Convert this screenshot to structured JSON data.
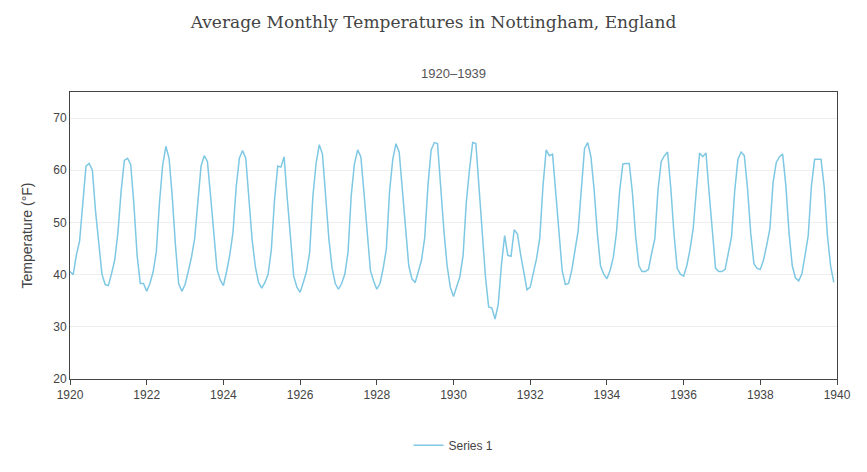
{
  "chart_data": {
    "type": "line",
    "title": "Average Monthly Temperatures in Nottingham, England",
    "subtitle": "1920–1939",
    "ylabel": "Temperature (°F)",
    "x": [
      1920,
      1920.0833333333333,
      1920.1666666666667,
      1920.25,
      1920.3333333333333,
      1920.4166666666667,
      1920.5,
      1920.5833333333333,
      1920.6666666666667,
      1920.75,
      1920.8333333333333,
      1920.9166666666667,
      1921,
      1921.0833333333333,
      1921.1666666666667,
      1921.25,
      1921.3333333333333,
      1921.4166666666667,
      1921.5,
      1921.5833333333333,
      1921.6666666666667,
      1921.75,
      1921.8333333333333,
      1921.9166666666667,
      1922,
      1922.0833333333333,
      1922.1666666666667,
      1922.25,
      1922.3333333333333,
      1922.4166666666667,
      1922.5,
      1922.5833333333333,
      1922.6666666666667,
      1922.75,
      1922.8333333333333,
      1922.9166666666667,
      1923,
      1923.0833333333333,
      1923.1666666666667,
      1923.25,
      1923.3333333333333,
      1923.4166666666667,
      1923.5,
      1923.5833333333333,
      1923.6666666666667,
      1923.75,
      1923.8333333333333,
      1923.9166666666667,
      1924,
      1924.0833333333333,
      1924.1666666666667,
      1924.25,
      1924.3333333333333,
      1924.4166666666667,
      1924.5,
      1924.5833333333333,
      1924.6666666666667,
      1924.75,
      1924.8333333333333,
      1924.9166666666667,
      1925,
      1925.0833333333333,
      1925.1666666666667,
      1925.25,
      1925.3333333333333,
      1925.4166666666667,
      1925.5,
      1925.5833333333333,
      1925.6666666666667,
      1925.75,
      1925.8333333333333,
      1925.9166666666667,
      1926,
      1926.0833333333333,
      1926.1666666666667,
      1926.25,
      1926.3333333333333,
      1926.4166666666667,
      1926.5,
      1926.5833333333333,
      1926.6666666666667,
      1926.75,
      1926.8333333333333,
      1926.9166666666667,
      1927,
      1927.0833333333333,
      1927.1666666666667,
      1927.25,
      1927.3333333333333,
      1927.4166666666667,
      1927.5,
      1927.5833333333333,
      1927.6666666666667,
      1927.75,
      1927.8333333333333,
      1927.9166666666667,
      1928,
      1928.0833333333333,
      1928.1666666666667,
      1928.25,
      1928.3333333333333,
      1928.4166666666667,
      1928.5,
      1928.5833333333333,
      1928.6666666666667,
      1928.75,
      1928.8333333333333,
      1928.9166666666667,
      1929,
      1929.0833333333333,
      1929.1666666666667,
      1929.25,
      1929.3333333333333,
      1929.4166666666667,
      1929.5,
      1929.5833333333333,
      1929.6666666666667,
      1929.75,
      1929.8333333333333,
      1929.9166666666667,
      1930,
      1930.0833333333333,
      1930.1666666666667,
      1930.25,
      1930.3333333333333,
      1930.4166666666667,
      1930.5,
      1930.5833333333333,
      1930.6666666666667,
      1930.75,
      1930.8333333333333,
      1930.9166666666667,
      1931,
      1931.0833333333333,
      1931.1666666666667,
      1931.25,
      1931.3333333333333,
      1931.4166666666667,
      1931.5,
      1931.5833333333333,
      1931.6666666666667,
      1931.75,
      1931.8333333333333,
      1931.9166666666667,
      1932,
      1932.0833333333333,
      1932.1666666666667,
      1932.25,
      1932.3333333333333,
      1932.4166666666667,
      1932.5,
      1932.5833333333333,
      1932.6666666666667,
      1932.75,
      1932.8333333333333,
      1932.9166666666667,
      1933,
      1933.0833333333333,
      1933.1666666666667,
      1933.25,
      1933.3333333333333,
      1933.4166666666667,
      1933.5,
      1933.5833333333333,
      1933.6666666666667,
      1933.75,
      1933.8333333333333,
      1933.9166666666667,
      1934,
      1934.0833333333333,
      1934.1666666666667,
      1934.25,
      1934.3333333333333,
      1934.4166666666667,
      1934.5,
      1934.5833333333333,
      1934.6666666666667,
      1934.75,
      1934.8333333333333,
      1934.9166666666667,
      1935,
      1935.0833333333333,
      1935.1666666666667,
      1935.25,
      1935.3333333333333,
      1935.4166666666667,
      1935.5,
      1935.5833333333333,
      1935.6666666666667,
      1935.75,
      1935.8333333333333,
      1935.9166666666667,
      1936,
      1936.0833333333333,
      1936.1666666666667,
      1936.25,
      1936.3333333333333,
      1936.4166666666667,
      1936.5,
      1936.5833333333333,
      1936.6666666666667,
      1936.75,
      1936.8333333333333,
      1936.9166666666667,
      1937,
      1937.0833333333333,
      1937.1666666666667,
      1937.25,
      1937.3333333333333,
      1937.4166666666667,
      1937.5,
      1937.5833333333333,
      1937.6666666666667,
      1937.75,
      1937.8333333333333,
      1937.9166666666667,
      1938,
      1938.0833333333333,
      1938.1666666666667,
      1938.25,
      1938.3333333333333,
      1938.4166666666667,
      1938.5,
      1938.5833333333333,
      1938.6666666666667,
      1938.75,
      1938.8333333333333,
      1938.9166666666667,
      1939,
      1939.0833333333333,
      1939.1666666666667,
      1939.25,
      1939.3333333333333,
      1939.4166666666667,
      1939.5,
      1939.5833333333333,
      1939.6666666666667,
      1939.75,
      1939.8333333333333,
      1939.9166666666667
    ],
    "series": [
      {
        "name": "Series 1",
        "color": "#7ec8e3",
        "values": [
          40.6,
          40.0,
          43.8,
          46.4,
          53.6,
          60.8,
          61.3,
          60.0,
          52.1,
          46.4,
          40.1,
          38.1,
          37.9,
          40.2,
          42.8,
          48.1,
          56.0,
          61.9,
          62.3,
          61.1,
          53.4,
          43.7,
          38.3,
          38.3,
          36.8,
          38.3,
          40.5,
          44.3,
          53.8,
          61.0,
          64.6,
          62.3,
          54.9,
          45.6,
          38.3,
          36.8,
          38.1,
          40.6,
          43.3,
          46.9,
          54.3,
          60.8,
          62.8,
          61.7,
          55.0,
          47.1,
          41.0,
          39.0,
          37.9,
          40.6,
          43.8,
          48.1,
          56.8,
          62.3,
          63.8,
          62.3,
          54.1,
          46.6,
          41.5,
          38.5,
          37.4,
          38.5,
          40.1,
          44.8,
          54.3,
          60.8,
          60.6,
          62.6,
          54.5,
          46.2,
          39.7,
          37.6,
          36.6,
          38.5,
          40.6,
          44.3,
          55.0,
          61.3,
          64.9,
          63.1,
          55.0,
          46.9,
          41.3,
          38.3,
          37.2,
          38.3,
          40.1,
          44.3,
          55.2,
          61.2,
          63.9,
          62.6,
          55.6,
          47.3,
          40.8,
          38.8,
          37.2,
          38.3,
          41.2,
          45.0,
          56.0,
          62.1,
          65.1,
          63.5,
          56.3,
          47.8,
          41.7,
          39.2,
          38.5,
          40.6,
          42.8,
          47.1,
          57.0,
          63.9,
          65.3,
          65.1,
          56.5,
          48.4,
          41.7,
          37.6,
          35.8,
          37.8,
          39.6,
          43.7,
          53.8,
          60.1,
          65.3,
          65.1,
          56.5,
          46.9,
          39.6,
          33.8,
          33.6,
          31.5,
          34.3,
          41.9,
          47.5,
          43.7,
          43.5,
          48.6,
          47.8,
          43.9,
          40.3,
          37.1,
          37.6,
          40.3,
          43.1,
          47.1,
          57.0,
          63.9,
          62.8,
          63.1,
          55.4,
          47.3,
          40.8,
          38.1,
          38.3,
          40.8,
          44.6,
          48.4,
          56.3,
          64.2,
          65.3,
          62.6,
          56.3,
          48.0,
          41.7,
          40.1,
          39.2,
          40.8,
          43.3,
          48.1,
          56.1,
          61.2,
          61.3,
          61.3,
          55.6,
          47.3,
          41.7,
          40.6,
          40.6,
          41.0,
          44.1,
          46.9,
          56.3,
          61.7,
          62.8,
          63.5,
          56.5,
          47.8,
          41.2,
          40.1,
          39.7,
          41.7,
          44.8,
          48.8,
          56.3,
          63.3,
          62.6,
          63.3,
          55.6,
          47.5,
          41.2,
          40.6,
          40.6,
          41.0,
          44.1,
          47.3,
          56.1,
          62.1,
          63.5,
          62.8,
          56.5,
          48.0,
          42.1,
          41.2,
          41.0,
          42.8,
          45.6,
          48.8,
          57.7,
          61.5,
          62.6,
          63.1,
          57.0,
          48.0,
          41.7,
          39.4,
          38.8,
          40.1,
          43.7,
          47.5,
          57.0,
          62.1,
          62.1,
          62.1,
          56.8,
          47.5,
          41.7,
          38.5
        ]
      }
    ],
    "xlim": [
      1920,
      1940
    ],
    "xticks": [
      1920,
      1922,
      1924,
      1926,
      1928,
      1930,
      1932,
      1934,
      1936,
      1938,
      1940
    ],
    "ylim": [
      20,
      75
    ],
    "yticks": [
      20,
      30,
      40,
      50,
      60,
      70
    ],
    "grid": true,
    "legend": "bottom"
  }
}
